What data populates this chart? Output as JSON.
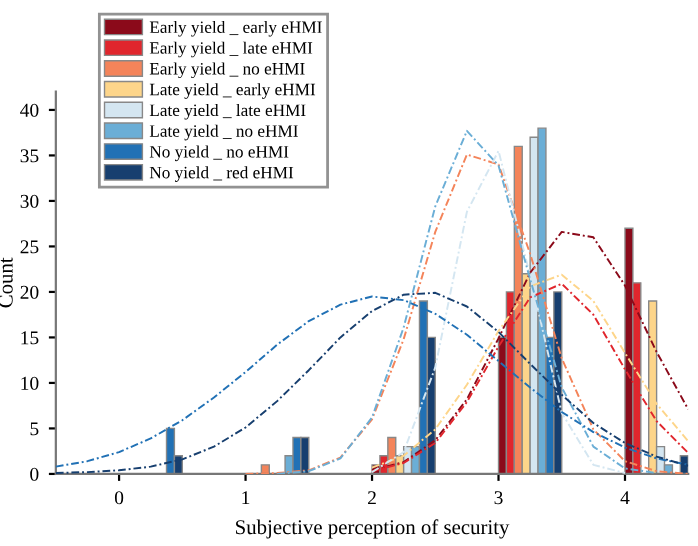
{
  "chart_data": {
    "type": "bar",
    "xlabel": "Subjective perception of security",
    "ylabel": "Count",
    "xlim": [
      -0.5,
      4.5
    ],
    "xticks": [
      0,
      1,
      2,
      3,
      4
    ],
    "ylim": [
      0,
      42
    ],
    "yticks": [
      0,
      5,
      10,
      15,
      20,
      25,
      30,
      35,
      40
    ],
    "legend": "top left",
    "grid": false,
    "series": [
      {
        "name": "Early yield _ early eHMI",
        "color": "#8b0a1a",
        "x": [
          0,
          1,
          2,
          3,
          4
        ],
        "values": [
          0,
          0,
          1,
          15,
          27
        ]
      },
      {
        "name": "Early yield _ late eHMI",
        "color": "#e0262d",
        "x": [
          0,
          1,
          2,
          3,
          4
        ],
        "values": [
          0,
          0,
          2,
          20,
          21
        ]
      },
      {
        "name": "Early yield _ no eHMI",
        "color": "#f4845a",
        "x": [
          0,
          1,
          2,
          3,
          4
        ],
        "values": [
          0,
          1,
          4,
          36,
          0
        ]
      },
      {
        "name": "Late yield _ early eHMI",
        "color": "#fdd58a",
        "x": [
          0,
          1,
          2,
          3,
          4
        ],
        "values": [
          0,
          0,
          2,
          22,
          19
        ]
      },
      {
        "name": "Late yield _ late eHMI",
        "color": "#d4e6f1",
        "x": [
          0,
          1,
          2,
          3,
          4
        ],
        "values": [
          0,
          0,
          3,
          37,
          3
        ]
      },
      {
        "name": "Late yield _ no eHMI",
        "color": "#6baed6",
        "x": [
          0,
          1,
          2,
          3,
          4
        ],
        "values": [
          0,
          2,
          3,
          38,
          1
        ]
      },
      {
        "name": "No yield _ no eHMI",
        "color": "#2171b5",
        "x": [
          0,
          1,
          2,
          3,
          4
        ],
        "values": [
          5,
          4,
          19,
          15,
          0
        ]
      },
      {
        "name": "No yield _ red eHMI",
        "color": "#173f6f",
        "x": [
          0,
          1,
          2,
          3,
          4
        ],
        "values": [
          2,
          4,
          15,
          20,
          2
        ]
      },
      {
        "type": "line",
        "line_style": "dashed",
        "color": "#8b0a1a",
        "x": [
          2.0,
          2.25,
          2.5,
          2.75,
          3.0,
          3.25,
          3.5,
          3.75,
          4.0,
          4.25,
          4.5
        ],
        "values": [
          0.4,
          1.3,
          3.7,
          8.2,
          14.9,
          22.1,
          26.6,
          26.0,
          20.7,
          13.4,
          7.1
        ]
      },
      {
        "type": "line",
        "line_style": "dashed",
        "color": "#e0262d",
        "x": [
          2.0,
          2.25,
          2.5,
          2.75,
          3.0,
          3.25,
          3.5,
          3.75,
          4.0,
          4.25,
          4.5
        ],
        "values": [
          0.3,
          1.2,
          3.4,
          7.9,
          14.0,
          19.4,
          20.9,
          17.5,
          11.5,
          5.8,
          2.3
        ]
      },
      {
        "type": "line",
        "line_style": "dashed",
        "color": "#f4845a",
        "x": [
          1.0,
          1.25,
          1.5,
          1.75,
          2.0,
          2.25,
          2.5,
          2.75,
          3.0,
          3.25,
          3.5,
          3.75,
          4.0,
          4.25,
          4.5
        ],
        "values": [
          0,
          0.1,
          0.4,
          1.8,
          6.0,
          14.8,
          26.6,
          35.1,
          34.0,
          24.2,
          12.7,
          4.9,
          1.4,
          0.3,
          0
        ]
      },
      {
        "type": "line",
        "line_style": "dashed",
        "color": "#fdd58a",
        "x": [
          2.0,
          2.25,
          2.5,
          2.75,
          3.0,
          3.25,
          3.5,
          3.75,
          4.0,
          4.25,
          4.5
        ],
        "values": [
          0.7,
          2.0,
          4.9,
          9.8,
          15.7,
          20.6,
          21.9,
          19.0,
          13.3,
          7.7,
          3.6
        ]
      },
      {
        "type": "line",
        "line_style": "dashed",
        "color": "#d4e6f1",
        "x": [
          2.0,
          2.25,
          2.5,
          2.75,
          3.0,
          3.25,
          3.5,
          3.75,
          4.0
        ],
        "values": [
          0.2,
          2.4,
          11.7,
          28.8,
          35.5,
          21.8,
          6.7,
          1.0,
          0.1
        ]
      },
      {
        "type": "line",
        "line_style": "dashed",
        "color": "#6baed6",
        "x": [
          1.25,
          1.5,
          1.75,
          2.0,
          2.25,
          2.5,
          2.75,
          3.0,
          3.25,
          3.5,
          3.75,
          4.0,
          4.25
        ],
        "values": [
          0,
          0.3,
          1.7,
          6.2,
          16.1,
          29.4,
          37.7,
          33.9,
          21.4,
          9.5,
          3.0,
          0.6,
          0.1
        ]
      },
      {
        "type": "line",
        "line_style": "dashed",
        "color": "#2171b5",
        "x": [
          -0.5,
          -0.25,
          0,
          0.25,
          0.5,
          0.75,
          1.0,
          1.25,
          1.5,
          1.75,
          2.0,
          2.25,
          2.5,
          2.75,
          3.0,
          3.25,
          3.5,
          3.75,
          4.0,
          4.25,
          4.5
        ],
        "values": [
          0.8,
          1.4,
          2.4,
          3.9,
          5.9,
          8.4,
          11.2,
          14.2,
          16.8,
          18.6,
          19.5,
          19.1,
          17.6,
          15.3,
          12.4,
          9.5,
          6.8,
          4.6,
          2.9,
          1.7,
          1.0
        ]
      },
      {
        "type": "line",
        "line_style": "dashed",
        "color": "#173f6f",
        "x": [
          -0.5,
          -0.25,
          0,
          0.25,
          0.5,
          0.75,
          1.0,
          1.25,
          1.5,
          1.75,
          2.0,
          2.25,
          2.5,
          2.75,
          3.0,
          3.25,
          3.5,
          3.75,
          4.0,
          4.25,
          4.5
        ],
        "values": [
          0.1,
          0.2,
          0.4,
          0.8,
          1.6,
          3.0,
          5.1,
          8.0,
          11.4,
          15.0,
          17.9,
          19.7,
          19.9,
          18.4,
          15.6,
          12.1,
          8.7,
          5.6,
          3.4,
          1.9,
          0.9
        ]
      }
    ]
  }
}
